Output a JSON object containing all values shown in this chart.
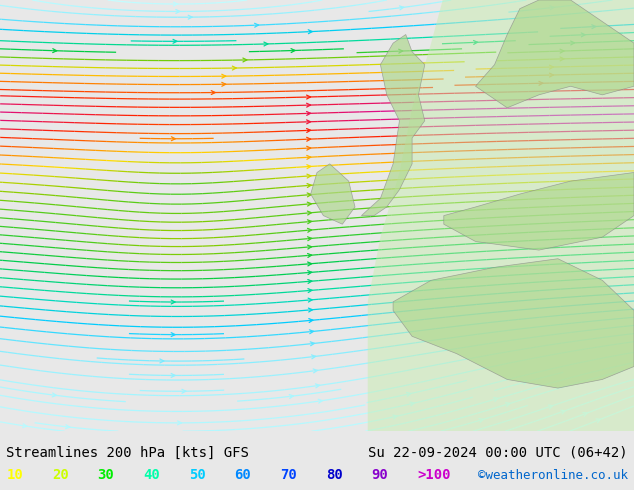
{
  "title_left": "Streamlines 200 hPa [kts] GFS",
  "title_right": "Su 22-09-2024 00:00 UTC (06+42)",
  "credit": "©weatheronline.co.uk",
  "legend_values": [
    "10",
    "20",
    "30",
    "40",
    "50",
    "60",
    "70",
    "80",
    "90",
    ">100"
  ],
  "legend_colors": [
    "#ffff00",
    "#ccff00",
    "#00ff00",
    "#00ffcc",
    "#00ccff",
    "#0088ff",
    "#0044ff",
    "#0000ff",
    "#8800ff",
    "#ff00ff"
  ],
  "bg_color": "#e8e8e8",
  "land_color_low": "#d8f0d8",
  "land_color_high": "#b0e0b0",
  "fig_width": 6.34,
  "fig_height": 4.9,
  "dpi": 100,
  "speed_colors": {
    "10": "#00ccff",
    "20": "#00aaff",
    "30": "#00ddaa",
    "40": "#00cc00",
    "50": "#88cc00",
    "60": "#ffcc00",
    "70": "#ff8800",
    "80": "#ff0000",
    "90": "#cc0088",
    "100": "#8800cc"
  }
}
